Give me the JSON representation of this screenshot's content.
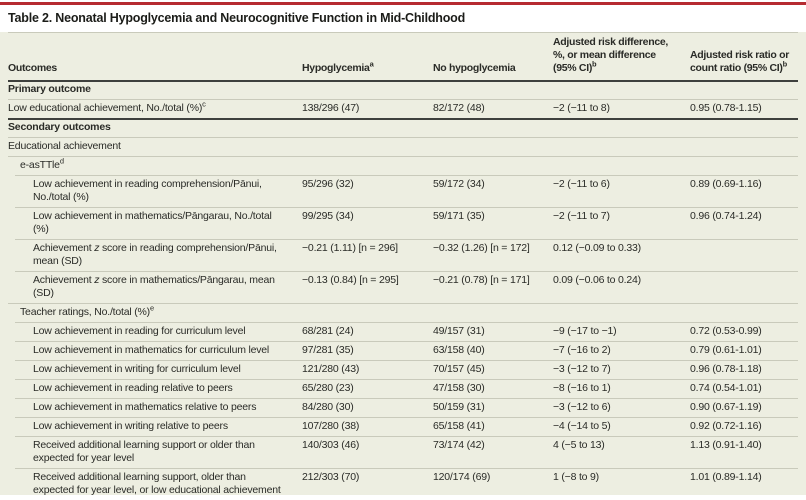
{
  "title": "Table 2. Neonatal Hypoglycemia and Neurocognitive Function in Mid-Childhood",
  "colors": {
    "accent_rule": "#b62a31",
    "table_bg": "#edeee1",
    "row_line": "#c9cabb",
    "heavy_line": "#3e403d",
    "text": "#2a2b27",
    "title_text": "#1b1c18",
    "page_bg": "#ffffff"
  },
  "columns": [
    {
      "label": "Outcomes"
    },
    {
      "label": "Hypoglycemia^a"
    },
    {
      "label": "No hypoglycemia"
    },
    {
      "label": "Adjusted risk difference, %, or mean difference (95% CI)^b"
    },
    {
      "label": "Adjusted risk ratio or count ratio (95% CI)^b"
    }
  ],
  "rows": [
    {
      "label": "Primary outcome",
      "bold": true,
      "indent": 0,
      "sep": "heavy",
      "cells": [
        "",
        "",
        "",
        ""
      ]
    },
    {
      "label": "Low educational achievement, No./total (%)^c",
      "bold": false,
      "indent": 0,
      "sep": "thin",
      "cells": [
        "138/296 (47)",
        "82/172 (48)",
        "−2 (−11 to 8)",
        "0.95 (0.78-1.15)"
      ]
    },
    {
      "label": "Secondary outcomes",
      "bold": true,
      "indent": 0,
      "sep": "heavy",
      "cells": [
        "",
        "",
        "",
        ""
      ]
    },
    {
      "label": "Educational achievement",
      "bold": false,
      "indent": 0,
      "sep": "thin",
      "cells": [
        "",
        "",
        "",
        ""
      ]
    },
    {
      "label": "e-asTTle^d",
      "bold": false,
      "indent": 1,
      "sep": "thin",
      "cells": [
        "",
        "",
        "",
        ""
      ]
    },
    {
      "label": "Low achievement in reading comprehension/Pānui, No./total (%)",
      "bold": false,
      "indent": 2,
      "sep": "thin",
      "cells": [
        "95/296 (32)",
        "59/172 (34)",
        "−2 (−11 to 6)",
        "0.89 (0.69-1.16)"
      ]
    },
    {
      "label": "Low achievement in mathematics/Pāngarau, No./total (%)",
      "bold": false,
      "indent": 2,
      "sep": "thin",
      "cells": [
        "99/295 (34)",
        "59/171 (35)",
        "−2 (−11 to 7)",
        "0.96 (0.74-1.24)"
      ]
    },
    {
      "label": "Achievement *z* score in reading comprehension/Pānui, mean (SD)",
      "bold": false,
      "indent": 2,
      "sep": "thin",
      "cells": [
        "−0.21 (1.11) [n = 296]",
        "−0.32 (1.26) [n = 172]",
        "0.12 (−0.09 to 0.33)",
        ""
      ]
    },
    {
      "label": "Achievement *z* score in mathematics/Pāngarau, mean (SD)",
      "bold": false,
      "indent": 2,
      "sep": "thin",
      "cells": [
        "−0.13 (0.84) [n = 295]",
        "−0.21 (0.78) [n = 171]",
        "0.09 (−0.06 to 0.24)",
        ""
      ]
    },
    {
      "label": "Teacher ratings, No./total (%)^e",
      "bold": false,
      "indent": 1,
      "sep": "thin",
      "cells": [
        "",
        "",
        "",
        ""
      ]
    },
    {
      "label": "Low achievement in reading for curriculum level",
      "bold": false,
      "indent": 2,
      "sep": "thin",
      "cells": [
        "68/281 (24)",
        "49/157 (31)",
        "−9 (−17 to −1)",
        "0.72 (0.53-0.99)"
      ]
    },
    {
      "label": "Low achievement in mathematics for curriculum level",
      "bold": false,
      "indent": 2,
      "sep": "thin",
      "cells": [
        "97/281 (35)",
        "63/158 (40)",
        "−7 (−16 to 2)",
        "0.79 (0.61-1.01)"
      ]
    },
    {
      "label": "Low achievement in writing for curriculum level",
      "bold": false,
      "indent": 2,
      "sep": "thin",
      "cells": [
        "121/280 (43)",
        "70/157 (45)",
        "−3 (−12 to 7)",
        "0.96 (0.78-1.18)"
      ]
    },
    {
      "label": "Low achievement in reading relative to peers",
      "bold": false,
      "indent": 2,
      "sep": "thin",
      "cells": [
        "65/280 (23)",
        "47/158 (30)",
        "−8 (−16 to 1)",
        "0.74 (0.54-1.01)"
      ]
    },
    {
      "label": "Low achievement in mathematics relative to peers",
      "bold": false,
      "indent": 2,
      "sep": "thin",
      "cells": [
        "84/280 (30)",
        "50/159 (31)",
        "−3 (−12 to 6)",
        "0.90 (0.67-1.19)"
      ]
    },
    {
      "label": "Low achievement in writing relative to peers",
      "bold": false,
      "indent": 2,
      "sep": "thin",
      "cells": [
        "107/280 (38)",
        "65/158 (41)",
        "−4 (−14 to 5)",
        "0.92 (0.72-1.16)"
      ]
    },
    {
      "label": "Received additional learning support or older than expected for year level",
      "bold": false,
      "indent": 2,
      "sep": "thin",
      "cells": [
        "140/303 (46)",
        "73/174 (42)",
        "4 (−5 to 13)",
        "1.13 (0.91-1.40)"
      ]
    },
    {
      "label": "Received additional learning support, older than expected for year level, or low educational achievement",
      "bold": false,
      "indent": 2,
      "sep": "thin",
      "cells": [
        "212/303 (70)",
        "120/174 (69)",
        "1 (−8 to 9)",
        "1.01 (0.89-1.14)"
      ]
    }
  ]
}
